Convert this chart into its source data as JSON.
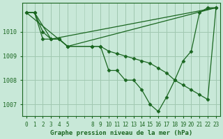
{
  "bg_color": "#c8e8d8",
  "grid_color": "#a0c8b0",
  "line_color": "#1a6620",
  "marker_color": "#1a6620",
  "xlabel": "Graphe pression niveau de la mer (hPa)",
  "xlabel_color": "#1a6620",
  "xticks": [
    0,
    1,
    2,
    3,
    4,
    5,
    8,
    9,
    10,
    11,
    12,
    13,
    14,
    15,
    16,
    17,
    18,
    19,
    20,
    21,
    22,
    23
  ],
  "ylim": [
    1006.5,
    1011.2
  ],
  "yticks": [
    1007,
    1008,
    1009,
    1010
  ],
  "series": [
    {
      "x": [
        0,
        1,
        2,
        3,
        4,
        5,
        8,
        9,
        10,
        11,
        12,
        13,
        14,
        15,
        16,
        17,
        18,
        19,
        20,
        21,
        22,
        23
      ],
      "y": [
        1010.8,
        1010.8,
        1010.0,
        1009.7,
        1009.7,
        1009.4,
        1009.4,
        1009.4,
        1008.4,
        1008.4,
        1008.0,
        1008.0,
        1007.6,
        1007.0,
        1006.7,
        1007.3,
        1008.0,
        1008.8,
        1009.2,
        1010.8,
        1011.0,
        1011.0
      ]
    },
    {
      "x": [
        0,
        1,
        2,
        3,
        4,
        5,
        8,
        9,
        10,
        11,
        12,
        13,
        14,
        15,
        16,
        17,
        18,
        19,
        20,
        21,
        22,
        23
      ],
      "y": [
        1010.8,
        1010.8,
        1009.7,
        1009.7,
        1009.7,
        1009.4,
        1009.4,
        1009.4,
        1009.2,
        1009.1,
        1009.0,
        1008.9,
        1008.8,
        1008.7,
        1008.5,
        1008.3,
        1008.0,
        1007.8,
        1007.6,
        1007.4,
        1007.2,
        1011.0
      ]
    },
    {
      "x": [
        0,
        1,
        3,
        23
      ],
      "y": [
        1010.8,
        1010.8,
        1009.7,
        1011.0
      ]
    },
    {
      "x": [
        0,
        5,
        23
      ],
      "y": [
        1010.8,
        1009.4,
        1011.0
      ]
    }
  ]
}
